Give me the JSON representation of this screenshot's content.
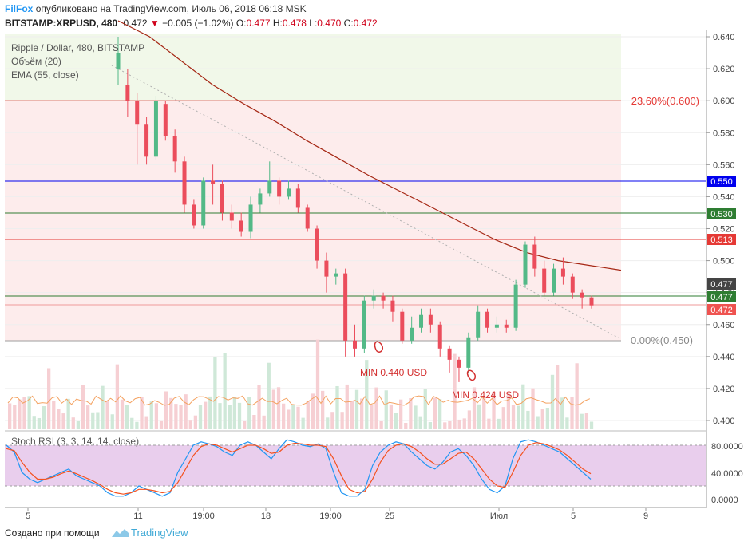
{
  "header": {
    "brand": "FilFox",
    "published": "опубликовано на TradingView.com, Июль 06, 2018 06:18 MSK",
    "symbol": "BITSTAMP:XRPUSD, 480",
    "last": "0.472",
    "change": "−0.005 (−1.02%)",
    "o_key": "O:",
    "o_val": "0.477",
    "h_key": "H:",
    "h_val": "0.478",
    "l_key": "L:",
    "l_val": "0.470",
    "c_key": "C:",
    "c_val": "0.472"
  },
  "legend": {
    "title": "Ripple / Dollar, 480, BITSTAMP",
    "volume": "Объём (20)",
    "ema": "EMA (55, close)"
  },
  "stoch_legend": "Stoch RSI (3, 3, 14, 14, close)",
  "fib": {
    "top": "23.60%(0.600)",
    "bottom": "0.00%(0.450)"
  },
  "annotations": {
    "min1": "MIN 0.440 USD",
    "min2": "MIN 0.424 USD"
  },
  "price_axis": [
    "0.640",
    "0.620",
    "0.600",
    "0.580",
    "0.560",
    "0.540",
    "0.520",
    "0.500",
    "0.480",
    "0.460",
    "0.440",
    "0.420",
    "0.400"
  ],
  "price_badges": [
    {
      "text": "0.550",
      "color": "#0000ee",
      "level": 0.55
    },
    {
      "text": "0.530",
      "color": "#2e7d32",
      "level": 0.53
    },
    {
      "text": "0.513",
      "color": "#e53935",
      "level": 0.513
    },
    {
      "text": "0.477",
      "color": "#444444",
      "level": 0.477
    },
    {
      "text": "0.477",
      "color": "#2e7d32",
      "level": 0.477
    },
    {
      "text": "0.472",
      "color": "#ef5350",
      "level": 0.472
    }
  ],
  "stoch_axis": [
    "80.0000",
    "40.0000",
    "0.0000"
  ],
  "time_axis": [
    "5",
    "11",
    "19:00",
    "18",
    "19:00",
    "25",
    "Июл",
    "5",
    "9"
  ],
  "footer": {
    "made_with": "Создано при помощи",
    "brand": "TradingView"
  },
  "colors": {
    "up": "#53b987",
    "down": "#eb4d5c",
    "ema": "#a52714",
    "stoch_k": "#2196f3",
    "stoch_d": "#f4511e",
    "stoch_band": "#e1bee7"
  },
  "chart_data": {
    "type": "candlestick",
    "ylim": [
      0.395,
      0.645
    ],
    "ema_points": [
      0.65,
      0.64,
      0.625,
      0.61,
      0.598,
      0.587,
      0.575,
      0.564,
      0.553,
      0.543,
      0.533,
      0.523,
      0.513,
      0.505,
      0.5,
      0.497,
      0.494
    ],
    "candles": [
      [
        0.62,
        0.63,
        0.61,
        0.64
      ],
      [
        0.61,
        0.6,
        0.59,
        0.62
      ],
      [
        0.6,
        0.585,
        0.56,
        0.605
      ],
      [
        0.585,
        0.565,
        0.56,
        0.59
      ],
      [
        0.565,
        0.6,
        0.563,
        0.603
      ],
      [
        0.598,
        0.578,
        0.575,
        0.6
      ],
      [
        0.578,
        0.562,
        0.555,
        0.582
      ],
      [
        0.562,
        0.535,
        0.53,
        0.565
      ],
      [
        0.535,
        0.522,
        0.52,
        0.538
      ],
      [
        0.522,
        0.55,
        0.52,
        0.552
      ],
      [
        0.55,
        0.548,
        0.535,
        0.56
      ],
      [
        0.548,
        0.53,
        0.525,
        0.55
      ],
      [
        0.53,
        0.525,
        0.52,
        0.535
      ],
      [
        0.525,
        0.518,
        0.515,
        0.53
      ],
      [
        0.518,
        0.535,
        0.514,
        0.54
      ],
      [
        0.535,
        0.542,
        0.53,
        0.545
      ],
      [
        0.542,
        0.55,
        0.54,
        0.562
      ],
      [
        0.55,
        0.54,
        0.535,
        0.552
      ],
      [
        0.54,
        0.545,
        0.538,
        0.55
      ],
      [
        0.545,
        0.533,
        0.53,
        0.548
      ],
      [
        0.533,
        0.52,
        0.518,
        0.535
      ],
      [
        0.52,
        0.5,
        0.495,
        0.522
      ],
      [
        0.5,
        0.49,
        0.48,
        0.505
      ],
      [
        0.49,
        0.492,
        0.485,
        0.495
      ],
      [
        0.492,
        0.45,
        0.44,
        0.495
      ],
      [
        0.45,
        0.445,
        0.44,
        0.46
      ],
      [
        0.445,
        0.475,
        0.442,
        0.478
      ],
      [
        0.475,
        0.478,
        0.47,
        0.482
      ],
      [
        0.478,
        0.475,
        0.47,
        0.48
      ],
      [
        0.475,
        0.468,
        0.462,
        0.478
      ],
      [
        0.468,
        0.45,
        0.448,
        0.47
      ],
      [
        0.45,
        0.458,
        0.448,
        0.465
      ],
      [
        0.458,
        0.466,
        0.455,
        0.47
      ],
      [
        0.466,
        0.46,
        0.455,
        0.47
      ],
      [
        0.46,
        0.445,
        0.44,
        0.462
      ],
      [
        0.445,
        0.438,
        0.43,
        0.447
      ],
      [
        0.438,
        0.433,
        0.424,
        0.44
      ],
      [
        0.433,
        0.452,
        0.43,
        0.455
      ],
      [
        0.452,
        0.468,
        0.45,
        0.472
      ],
      [
        0.468,
        0.458,
        0.455,
        0.47
      ],
      [
        0.458,
        0.46,
        0.455,
        0.465
      ],
      [
        0.46,
        0.458,
        0.455,
        0.463
      ],
      [
        0.458,
        0.485,
        0.456,
        0.488
      ],
      [
        0.485,
        0.51,
        0.483,
        0.512
      ],
      [
        0.51,
        0.495,
        0.49,
        0.515
      ],
      [
        0.495,
        0.48,
        0.478,
        0.5
      ],
      [
        0.48,
        0.495,
        0.478,
        0.498
      ],
      [
        0.495,
        0.49,
        0.485,
        0.502
      ],
      [
        0.49,
        0.48,
        0.476,
        0.492
      ],
      [
        0.48,
        0.477,
        0.47,
        0.482
      ],
      [
        0.477,
        0.472,
        0.47,
        0.478
      ]
    ],
    "stoch_k": [
      80,
      70,
      40,
      30,
      25,
      30,
      35,
      40,
      45,
      35,
      30,
      25,
      20,
      10,
      5,
      5,
      10,
      20,
      15,
      10,
      5,
      10,
      40,
      60,
      80,
      85,
      82,
      78,
      70,
      65,
      80,
      85,
      80,
      70,
      60,
      75,
      88,
      85,
      80,
      78,
      82,
      75,
      40,
      10,
      5,
      5,
      15,
      50,
      70,
      80,
      85,
      82,
      70,
      60,
      50,
      45,
      55,
      70,
      75,
      65,
      50,
      30,
      15,
      10,
      20,
      60,
      85,
      88,
      85,
      80,
      75,
      70,
      60,
      50,
      40,
      30
    ],
    "stoch_d": [
      75,
      72,
      55,
      40,
      30,
      30,
      33,
      38,
      42,
      38,
      33,
      28,
      22,
      15,
      10,
      8,
      10,
      15,
      15,
      13,
      10,
      12,
      25,
      45,
      65,
      78,
      82,
      80,
      75,
      70,
      75,
      80,
      80,
      75,
      68,
      70,
      80,
      83,
      82,
      80,
      80,
      78,
      60,
      35,
      15,
      10,
      12,
      30,
      55,
      72,
      80,
      82,
      78,
      70,
      60,
      52,
      52,
      60,
      68,
      70,
      60,
      45,
      30,
      20,
      18,
      40,
      65,
      80,
      84,
      82,
      78,
      73,
      65,
      55,
      45,
      38
    ]
  }
}
